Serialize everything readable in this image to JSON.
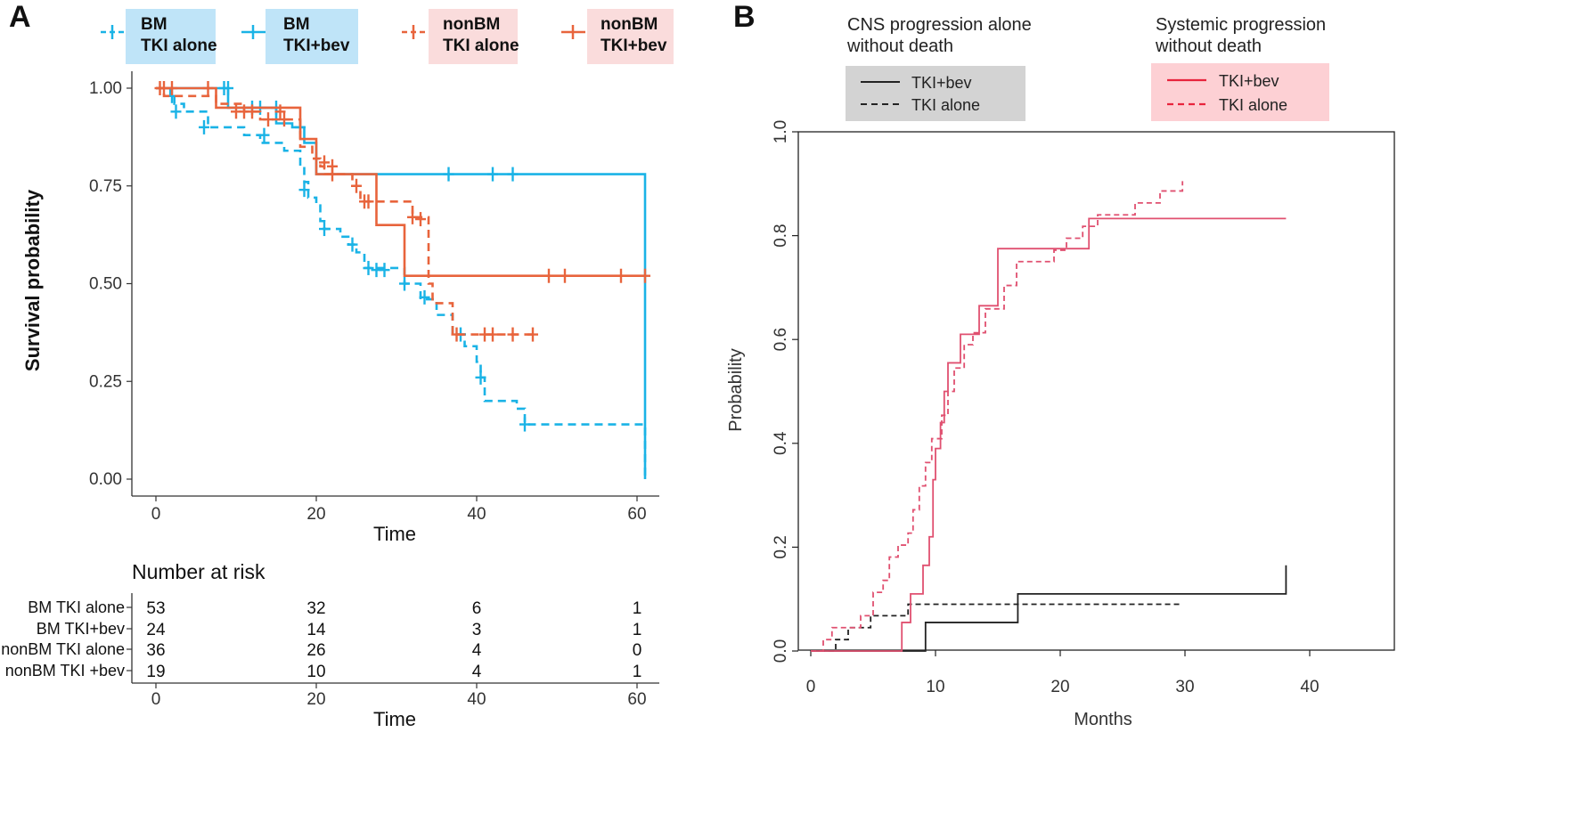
{
  "panel_a": {
    "letter": "A",
    "legend": [
      {
        "line1": "BM",
        "line2": "TKI alone",
        "color": "#1ab3e6",
        "dash": true,
        "box": "#bfe4f8"
      },
      {
        "line1": "BM",
        "line2": "TKI+bev",
        "color": "#1ab3e6",
        "dash": false,
        "box": "#bfe4f8"
      },
      {
        "line1": "nonBM",
        "line2": "TKI alone",
        "color": "#e8643c",
        "dash": true,
        "box": "#fadcdc"
      },
      {
        "line1": "nonBM",
        "line2": "TKI+bev",
        "color": "#e8643c",
        "dash": false,
        "box": "#fadcdc"
      }
    ],
    "ylabel": "Survival probability",
    "xlabel": "Time",
    "yticks": [
      "1.00",
      "0.75",
      "0.50",
      "0.25",
      "0.00"
    ],
    "xticks": [
      "0",
      "20",
      "40",
      "60"
    ],
    "risk_table": {
      "title": "Number at risk",
      "xlabel": "Time",
      "xticks": [
        "0",
        "20",
        "40",
        "60"
      ],
      "rows": [
        {
          "label": "BM TKI alone",
          "values": [
            "53",
            "32",
            "6",
            "1"
          ]
        },
        {
          "label": "BM TKI+bev",
          "values": [
            "24",
            "14",
            "3",
            "1"
          ]
        },
        {
          "label": "nonBM TKI alone",
          "values": [
            "36",
            "26",
            "4",
            "0"
          ]
        },
        {
          "label": "nonBM TKI +bev",
          "values": [
            "19",
            "10",
            "4",
            "1"
          ]
        }
      ]
    }
  },
  "panel_b": {
    "letter": "B",
    "legend_left": {
      "title1": "CNS progression alone",
      "title2": "without death",
      "items": [
        "TKI+bev",
        "TKI alone"
      ],
      "color": "#222222",
      "box": "#d3d3d3"
    },
    "legend_right": {
      "title1": "Systemic progression",
      "title2": "without death",
      "items": [
        "TKI+bev",
        "TKI alone"
      ],
      "color": "#e8243c",
      "box": "#fdd0d4"
    },
    "ylabel": "Probability",
    "xlabel": "Months",
    "yticks": [
      "0.0",
      "0.2",
      "0.4",
      "0.6",
      "0.8",
      "1.0"
    ],
    "xticks": [
      "0",
      "10",
      "20",
      "30",
      "40"
    ]
  },
  "chart_data": [
    {
      "type": "line",
      "subtype": "kaplan-meier",
      "title": "",
      "xlabel": "Time",
      "ylabel": "Survival probability",
      "xlim": [
        -4,
        62
      ],
      "ylim": [
        0,
        1
      ],
      "series": [
        {
          "name": "BM TKI alone",
          "color": "#1ab3e6",
          "dash": true,
          "steps": [
            [
              0,
              1.0
            ],
            [
              1.8,
              0.98
            ],
            [
              2.3,
              0.96
            ],
            [
              3.5,
              0.94
            ],
            [
              6.5,
              0.9
            ],
            [
              11,
              0.88
            ],
            [
              13,
              0.86
            ],
            [
              16,
              0.84
            ],
            [
              18,
              0.8
            ],
            [
              18.5,
              0.76
            ],
            [
              19,
              0.72
            ],
            [
              20,
              0.7
            ],
            [
              20.5,
              0.66
            ],
            [
              21,
              0.64
            ],
            [
              23,
              0.62
            ],
            [
              24,
              0.6
            ],
            [
              25,
              0.58
            ],
            [
              26,
              0.54
            ],
            [
              31,
              0.5
            ],
            [
              33,
              0.46
            ],
            [
              35,
              0.42
            ],
            [
              37,
              0.37
            ],
            [
              38.5,
              0.34
            ],
            [
              40,
              0.3
            ],
            [
              40.5,
              0.26
            ],
            [
              41,
              0.2
            ],
            [
              45,
              0.18
            ],
            [
              46,
              0.14
            ],
            [
              61,
              0.0
            ]
          ],
          "censor": [
            [
              2,
              0.98
            ],
            [
              2.5,
              0.94
            ],
            [
              6,
              0.9
            ],
            [
              13.5,
              0.88
            ],
            [
              18.5,
              0.74
            ],
            [
              21,
              0.64
            ],
            [
              24.5,
              0.6
            ],
            [
              26.5,
              0.54
            ],
            [
              27.5,
              0.535
            ],
            [
              28.5,
              0.535
            ],
            [
              31,
              0.5
            ],
            [
              33.5,
              0.465
            ],
            [
              38,
              0.37
            ],
            [
              40.5,
              0.26
            ],
            [
              46,
              0.14
            ]
          ]
        },
        {
          "name": "BM TKI+bev",
          "color": "#1ab3e6",
          "dash": false,
          "steps": [
            [
              0,
              1.0
            ],
            [
              9,
              0.95
            ],
            [
              15,
              0.91
            ],
            [
              17,
              0.9
            ],
            [
              18.5,
              0.86
            ],
            [
              20,
              0.78
            ],
            [
              61,
              0.78
            ],
            [
              61,
              0.0
            ]
          ],
          "censor": [
            [
              8.5,
              1.0
            ],
            [
              9,
              1.0
            ],
            [
              12,
              0.95
            ],
            [
              13,
              0.95
            ],
            [
              15,
              0.95
            ],
            [
              18,
              0.9
            ],
            [
              36.5,
              0.78
            ],
            [
              42,
              0.78
            ],
            [
              44.5,
              0.78
            ]
          ]
        },
        {
          "name": "nonBM TKI alone",
          "color": "#e8643c",
          "dash": true,
          "steps": [
            [
              0,
              1.0
            ],
            [
              1,
              0.98
            ],
            [
              7.5,
              0.96
            ],
            [
              11,
              0.94
            ],
            [
              13,
              0.92
            ],
            [
              18,
              0.85
            ],
            [
              19.5,
              0.82
            ],
            [
              20.5,
              0.8
            ],
            [
              21,
              0.78
            ],
            [
              24.5,
              0.75
            ],
            [
              25.5,
              0.71
            ],
            [
              28,
              0.71
            ],
            [
              32,
              0.67
            ],
            [
              34,
              0.5
            ],
            [
              34.5,
              0.45
            ],
            [
              37,
              0.37
            ],
            [
              47.5,
              0.37
            ]
          ],
          "censor": [
            [
              0.5,
              1.0
            ],
            [
              2,
              1.0
            ],
            [
              6.5,
              1.0
            ],
            [
              10,
              0.94
            ],
            [
              11,
              0.94
            ],
            [
              14,
              0.92
            ],
            [
              16,
              0.92
            ],
            [
              21,
              0.81
            ],
            [
              22,
              0.8
            ],
            [
              25,
              0.75
            ],
            [
              26,
              0.71
            ],
            [
              26.5,
              0.71
            ],
            [
              32,
              0.67
            ],
            [
              33,
              0.665
            ],
            [
              37.5,
              0.37
            ],
            [
              41,
              0.37
            ],
            [
              42,
              0.37
            ],
            [
              44.5,
              0.37
            ],
            [
              47,
              0.37
            ]
          ]
        },
        {
          "name": "nonBM TKI+bev",
          "color": "#e8643c",
          "dash": false,
          "steps": [
            [
              0,
              1.0
            ],
            [
              7.5,
              0.95
            ],
            [
              18,
              0.87
            ],
            [
              20,
              0.78
            ],
            [
              27.5,
              0.65
            ],
            [
              31,
              0.52
            ],
            [
              61,
              0.52
            ]
          ],
          "censor": [
            [
              1,
              1.0
            ],
            [
              12,
              0.94
            ],
            [
              15.5,
              0.94
            ],
            [
              22,
              0.78
            ],
            [
              49,
              0.52
            ],
            [
              51,
              0.52
            ],
            [
              58,
              0.52
            ],
            [
              61,
              0.52
            ]
          ]
        }
      ],
      "risk_table": {
        "times": [
          0,
          20,
          40,
          60
        ],
        "rows": [
          {
            "name": "BM TKI alone",
            "values": [
              53,
              32,
              6,
              1
            ]
          },
          {
            "name": "BM TKI+bev",
            "values": [
              24,
              14,
              3,
              1
            ]
          },
          {
            "name": "nonBM TKI alone",
            "values": [
              36,
              26,
              4,
              0
            ]
          },
          {
            "name": "nonBM TKI +bev",
            "values": [
              19,
              10,
              4,
              1
            ]
          }
        ]
      }
    },
    {
      "type": "line",
      "subtype": "cumulative-incidence",
      "title": "",
      "xlabel": "Months",
      "ylabel": "Probability",
      "xlim": [
        0,
        47
      ],
      "ylim": [
        0,
        1
      ],
      "series": [
        {
          "name": "CNS progression alone without death - TKI+bev",
          "color": "#222222",
          "dash": false,
          "steps": [
            [
              0,
              0.0
            ],
            [
              9.2,
              0.0
            ],
            [
              9.2,
              0.055
            ],
            [
              16.6,
              0.055
            ],
            [
              16.6,
              0.11
            ],
            [
              38.1,
              0.11
            ],
            [
              38.1,
              0.165
            ]
          ]
        },
        {
          "name": "CNS progression alone without death - TKI alone",
          "color": "#222222",
          "dash": true,
          "steps": [
            [
              0,
              0.0
            ],
            [
              2,
              0.0
            ],
            [
              2,
              0.022
            ],
            [
              3,
              0.022
            ],
            [
              3,
              0.045
            ],
            [
              4.8,
              0.045
            ],
            [
              4.8,
              0.068
            ],
            [
              7.8,
              0.068
            ],
            [
              7.8,
              0.09
            ],
            [
              29.8,
              0.09
            ]
          ]
        },
        {
          "name": "Systemic progression without death - TKI+bev",
          "color": "#e05070",
          "dash": false,
          "steps": [
            [
              0,
              0.0
            ],
            [
              7.3,
              0.0
            ],
            [
              7.3,
              0.055
            ],
            [
              8,
              0.055
            ],
            [
              8,
              0.11
            ],
            [
              9,
              0.11
            ],
            [
              9,
              0.165
            ],
            [
              9.5,
              0.165
            ],
            [
              9.5,
              0.22
            ],
            [
              9.8,
              0.22
            ],
            [
              9.8,
              0.33
            ],
            [
              10,
              0.33
            ],
            [
              10,
              0.39
            ],
            [
              10.4,
              0.39
            ],
            [
              10.4,
              0.44
            ],
            [
              10.7,
              0.44
            ],
            [
              10.7,
              0.5
            ],
            [
              11,
              0.5
            ],
            [
              11,
              0.555
            ],
            [
              12,
              0.555
            ],
            [
              12,
              0.61
            ],
            [
              13.5,
              0.61
            ],
            [
              13.5,
              0.665
            ],
            [
              15,
              0.665
            ],
            [
              15,
              0.775
            ],
            [
              22.3,
              0.775
            ],
            [
              22.3,
              0.833
            ],
            [
              38.1,
              0.833
            ]
          ]
        },
        {
          "name": "Systemic progression without death - TKI alone",
          "color": "#e05070",
          "dash": true,
          "steps": [
            [
              0,
              0.0
            ],
            [
              1,
              0.0
            ],
            [
              1,
              0.022
            ],
            [
              1.7,
              0.022
            ],
            [
              1.7,
              0.045
            ],
            [
              4,
              0.045
            ],
            [
              4,
              0.068
            ],
            [
              5,
              0.068
            ],
            [
              5,
              0.113
            ],
            [
              5.8,
              0.113
            ],
            [
              5.8,
              0.136
            ],
            [
              6.3,
              0.136
            ],
            [
              6.3,
              0.181
            ],
            [
              7,
              0.181
            ],
            [
              7,
              0.204
            ],
            [
              7.8,
              0.204
            ],
            [
              7.8,
              0.227
            ],
            [
              8.2,
              0.227
            ],
            [
              8.2,
              0.272
            ],
            [
              8.7,
              0.272
            ],
            [
              8.7,
              0.318
            ],
            [
              9.2,
              0.318
            ],
            [
              9.2,
              0.363
            ],
            [
              9.7,
              0.363
            ],
            [
              9.7,
              0.409
            ],
            [
              10.5,
              0.409
            ],
            [
              10.5,
              0.454
            ],
            [
              11,
              0.454
            ],
            [
              11,
              0.5
            ],
            [
              11.5,
              0.5
            ],
            [
              11.5,
              0.545
            ],
            [
              12.3,
              0.545
            ],
            [
              12.3,
              0.59
            ],
            [
              13,
              0.59
            ],
            [
              13,
              0.613
            ],
            [
              14,
              0.613
            ],
            [
              14,
              0.659
            ],
            [
              15.5,
              0.659
            ],
            [
              15.5,
              0.704
            ],
            [
              16.5,
              0.704
            ],
            [
              16.5,
              0.75
            ],
            [
              19.5,
              0.75
            ],
            [
              19.5,
              0.772
            ],
            [
              20.5,
              0.772
            ],
            [
              20.5,
              0.795
            ],
            [
              21.8,
              0.795
            ],
            [
              21.8,
              0.818
            ],
            [
              23,
              0.818
            ],
            [
              23,
              0.84
            ],
            [
              26,
              0.84
            ],
            [
              26,
              0.863
            ],
            [
              28,
              0.863
            ],
            [
              28,
              0.886
            ],
            [
              29.8,
              0.886
            ],
            [
              29.8,
              0.905
            ]
          ]
        }
      ],
      "legend_groups": [
        "CNS progression alone without death",
        "Systemic progression without death"
      ]
    }
  ]
}
